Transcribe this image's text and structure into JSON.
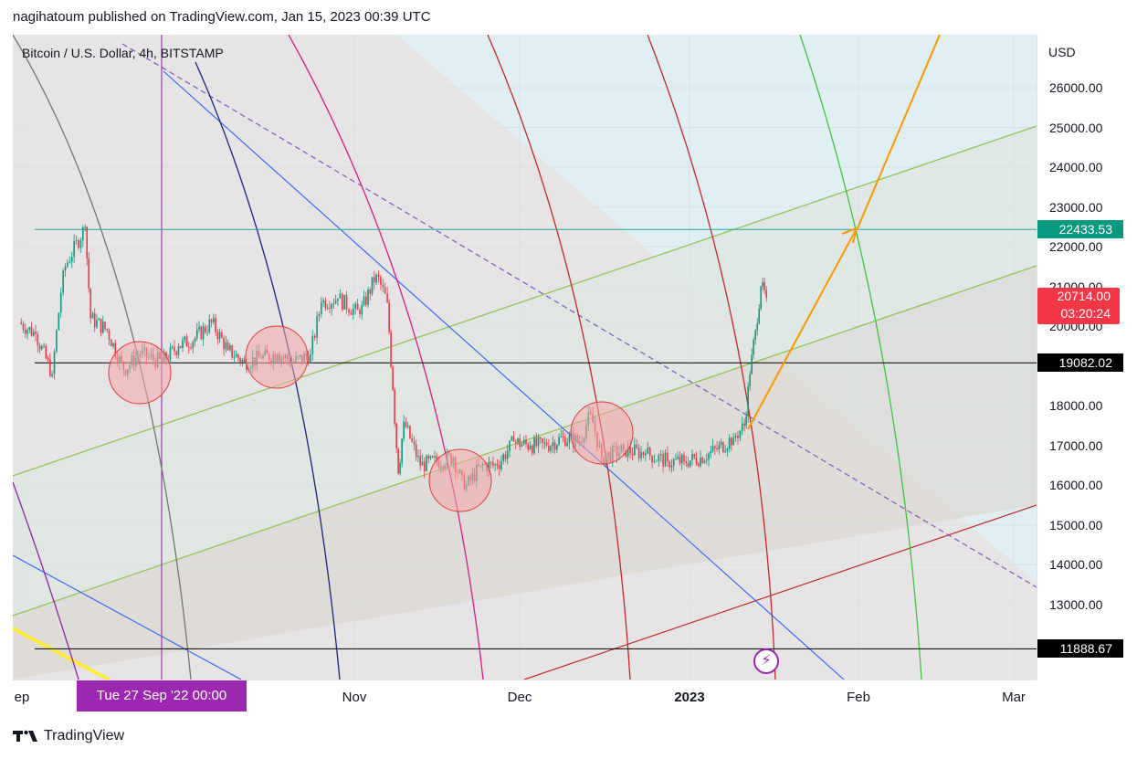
{
  "header": {
    "published_by": "nagihatoum published on TradingView.com, Jan 15, 2023 00:39 UTC"
  },
  "symbol_title": "Bitcoin / U.S. Dollar, 4h, BITSTAMP",
  "currency": "USD",
  "footer": {
    "brand": "TradingView",
    "logo_icon": "tradingview-logo-icon"
  },
  "crosshair_time_label": "Tue 27 Sep '22   00:00",
  "last_price": {
    "value": "20714.00",
    "countdown": "03:20:24",
    "color": "#f23645"
  },
  "levels": [
    {
      "label": "22433.53",
      "price": 22433.53,
      "color": "#089981",
      "line_color": "#26a69a"
    },
    {
      "label": "19082.02",
      "price": 19082.02,
      "color": "#000000",
      "line_color": "#000000"
    },
    {
      "label": "11888.67",
      "price": 11888.67,
      "color": "#000000",
      "line_color": "#000000"
    }
  ],
  "colors": {
    "candle_up": "#089981",
    "candle_down": "#f23645",
    "circle_fill": "#f4a6a6",
    "circle_stroke": "#e53935",
    "target_arrow": "#ff9800",
    "channel_line": "#8bc34a"
  },
  "chart_data": {
    "type": "candlestick",
    "title": "Bitcoin / U.S. Dollar, 4h, BITSTAMP",
    "currency": "USD",
    "ylim": [
      11300,
      27300
    ],
    "y_ticks": [
      13000,
      14000,
      15000,
      16000,
      17000,
      18000,
      19000,
      20000,
      21000,
      22000,
      23000,
      24000,
      25000,
      26000
    ],
    "x_ticks": [
      "ep",
      "Nov",
      "Dec",
      "2023",
      "Feb",
      "Mar"
    ],
    "series": [
      {
        "name": "BTCUSD",
        "points": [
          [
            "2022-09-01",
            20100
          ],
          [
            "2022-09-04",
            19800
          ],
          [
            "2022-09-07",
            18800
          ],
          [
            "2022-09-09",
            21400
          ],
          [
            "2022-09-13",
            22500
          ],
          [
            "2022-09-14",
            20200
          ],
          [
            "2022-09-17",
            19900
          ],
          [
            "2022-09-20",
            18900
          ],
          [
            "2022-09-23",
            19300
          ],
          [
            "2022-09-27",
            19100
          ],
          [
            "2022-09-30",
            19500
          ],
          [
            "2022-10-03",
            19700
          ],
          [
            "2022-10-06",
            20100
          ],
          [
            "2022-10-09",
            19400
          ],
          [
            "2022-10-12",
            19100
          ],
          [
            "2022-10-15",
            19200
          ],
          [
            "2022-10-18",
            19300
          ],
          [
            "2022-10-21",
            19100
          ],
          [
            "2022-10-24",
            19300
          ],
          [
            "2022-10-26",
            20600
          ],
          [
            "2022-10-29",
            20700
          ],
          [
            "2022-11-02",
            20300
          ],
          [
            "2022-11-05",
            21300
          ],
          [
            "2022-11-07",
            20600
          ],
          [
            "2022-11-08",
            18400
          ],
          [
            "2022-11-09",
            16300
          ],
          [
            "2022-11-10",
            17600
          ],
          [
            "2022-11-13",
            16500
          ],
          [
            "2022-11-16",
            16600
          ],
          [
            "2022-11-19",
            16700
          ],
          [
            "2022-11-21",
            15900
          ],
          [
            "2022-11-24",
            16500
          ],
          [
            "2022-11-27",
            16500
          ],
          [
            "2022-11-30",
            17100
          ],
          [
            "2022-12-03",
            17000
          ],
          [
            "2022-12-06",
            17000
          ],
          [
            "2022-12-09",
            17200
          ],
          [
            "2022-12-12",
            17100
          ],
          [
            "2022-12-14",
            17800
          ],
          [
            "2022-12-16",
            16700
          ],
          [
            "2022-12-20",
            16900
          ],
          [
            "2022-12-24",
            16800
          ],
          [
            "2022-12-28",
            16600
          ],
          [
            "2022-12-31",
            16600
          ],
          [
            "2023-01-03",
            16700
          ],
          [
            "2023-01-06",
            16900
          ],
          [
            "2023-01-09",
            17200
          ],
          [
            "2023-01-11",
            17500
          ],
          [
            "2023-01-12",
            18800
          ],
          [
            "2023-01-13",
            19900
          ],
          [
            "2023-01-14",
            21000
          ],
          [
            "2023-01-15",
            20714
          ]
        ]
      }
    ],
    "horizontal_levels": [
      22433.53,
      19082.02,
      11888.67
    ],
    "last_price": 20714.0,
    "countdown": "03:20:24"
  }
}
